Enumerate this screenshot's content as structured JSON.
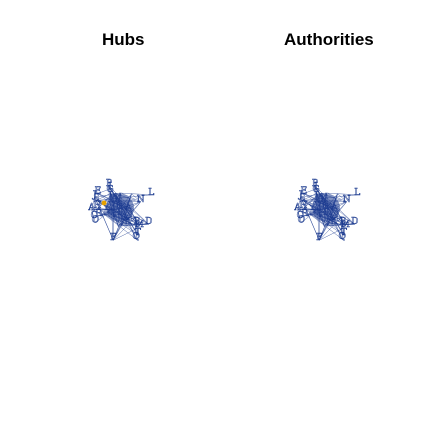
{
  "panels": [
    {
      "title": "Hubs"
    },
    {
      "title": "Authorities"
    }
  ],
  "node_labels": [
    "A",
    "B",
    "C",
    "D",
    "E",
    "F",
    "G",
    "H",
    "I",
    "J",
    "K",
    "L",
    "M",
    "N",
    "O",
    "P",
    "Q",
    "R",
    "S",
    "T"
  ],
  "colors": {
    "node": "#1b3a8f",
    "edge": "#1b3a8f",
    "highlight": "#e6a100",
    "background": "#ffffff"
  }
}
